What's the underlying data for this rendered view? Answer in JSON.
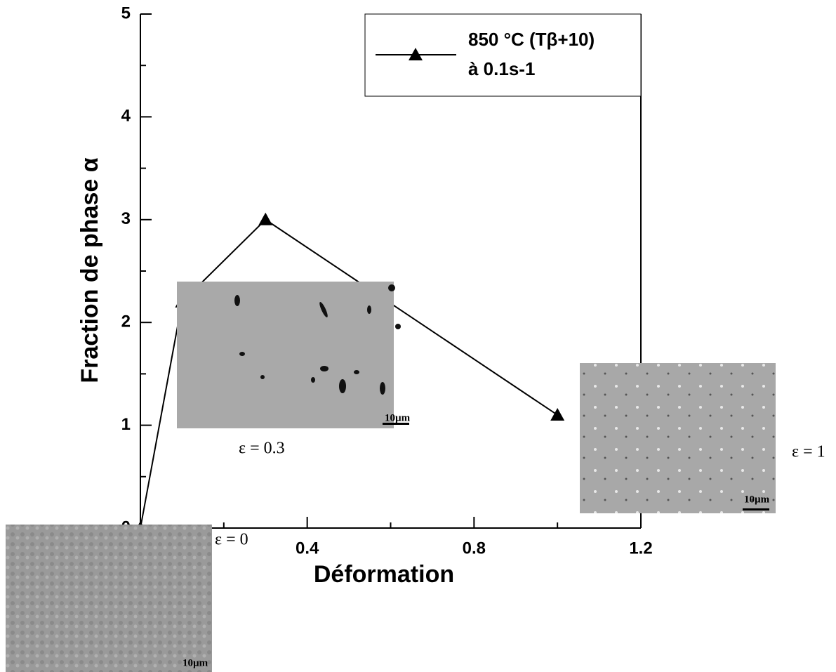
{
  "chart_data": {
    "type": "line",
    "x_label": "Déformation",
    "y_label": "Fraction de phase α",
    "x": [
      0,
      0.1,
      0.3,
      1.0
    ],
    "series": [
      {
        "name": "850 °C (Tβ+10)",
        "legend_note": "à 0.1s-1",
        "color": "#000000",
        "marker": "triangle",
        "values": [
          0,
          2.2,
          3,
          1.1
        ]
      }
    ],
    "xlim": [
      0,
      1.2
    ],
    "xticks": [
      0,
      0.4,
      0.8,
      1.2
    ],
    "xminorticks": [
      0.2,
      0.6,
      1.0
    ],
    "ylim": [
      0,
      5
    ],
    "yticks": [
      0,
      1,
      2,
      3,
      4,
      5
    ],
    "yminorticks": [
      0.5,
      1.5,
      2.5,
      3.5,
      4.5
    ],
    "legend": "upper right",
    "insets": [
      {
        "label": "ε = 0.3",
        "scale": "10µm"
      },
      {
        "label": "ε = 1",
        "scale": "10µm"
      },
      {
        "label": "ε = 0",
        "scale": "10µm"
      }
    ]
  }
}
